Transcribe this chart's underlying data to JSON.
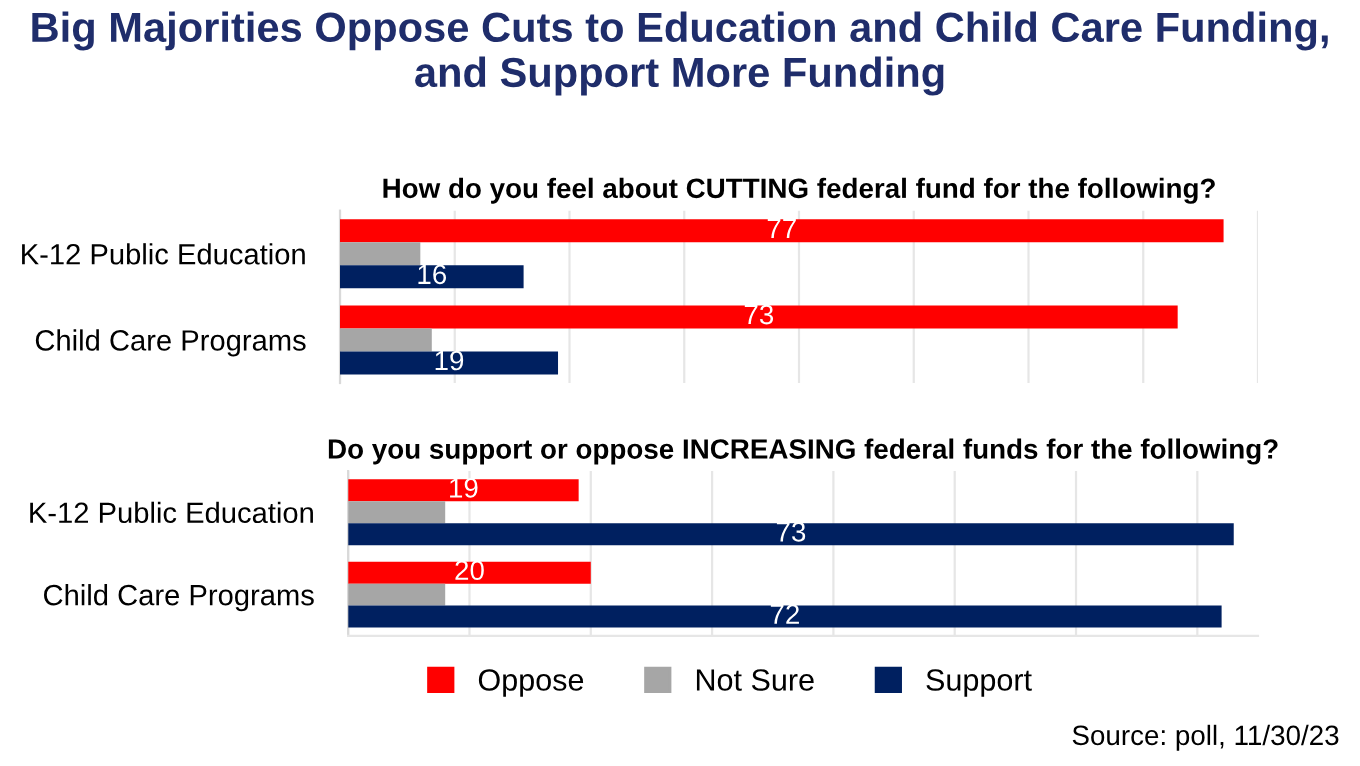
{
  "chart_data": [
    {
      "type": "bar",
      "orientation": "horizontal",
      "title": "Big Majorities Oppose Cuts to Education and Child Care Funding,\nand Support More Funding",
      "subtitle": "How do you feel about CUTTING federal fund for the following?",
      "categories": [
        "K-12 Public Education",
        "Child Care Programs"
      ],
      "series": [
        {
          "color": "#ff0000",
          "values": [
            77,
            73
          ],
          "value_labels": [
            "77",
            "73"
          ]
        },
        {
          "color": "#a6a6a6",
          "values": [
            7,
            8
          ],
          "value_labels": [
            null,
            null
          ]
        },
        {
          "color": "#002060",
          "values": [
            16,
            19
          ],
          "value_labels": [
            "16",
            "19"
          ]
        }
      ],
      "xlim": [
        0,
        80
      ],
      "xticks": [
        {
          "value": 0,
          "label": null
        },
        {
          "value": 10,
          "label": null
        },
        {
          "value": 20,
          "label": null
        },
        {
          "value": 30,
          "label": null
        },
        {
          "value": 40,
          "label": null
        },
        {
          "value": 50,
          "label": null
        },
        {
          "value": 60,
          "label": null
        },
        {
          "value": 70,
          "label": null
        },
        {
          "value": 80,
          "label": null
        }
      ],
      "grid": "x"
    },
    {
      "type": "bar",
      "orientation": "horizontal",
      "subtitle": "Do you support or oppose INCREASING federal funds for the following?",
      "categories": [
        "K-12 Public Education",
        "Child Care Programs"
      ],
      "series": [
        {
          "name": "Oppose",
          "color": "#ff0000",
          "values": [
            19,
            20
          ],
          "value_labels": [
            "19",
            "20"
          ]
        },
        {
          "name": "Not Sure",
          "color": "#a6a6a6",
          "values": [
            8,
            8
          ],
          "value_labels": [
            null,
            null
          ]
        },
        {
          "name": "Support",
          "color": "#002060",
          "values": [
            73,
            72
          ],
          "value_labels": [
            "73",
            "72"
          ]
        }
      ],
      "xlim": [
        0,
        75
      ],
      "xticks": [
        {
          "value": 0,
          "label": null
        },
        {
          "value": 10,
          "label": null
        },
        {
          "value": 20,
          "label": null
        },
        {
          "value": 30,
          "label": null
        },
        {
          "value": 40,
          "label": null
        },
        {
          "value": 50,
          "label": null
        },
        {
          "value": 60,
          "label": null
        },
        {
          "value": 70,
          "label": null
        }
      ],
      "grid": "x",
      "legend": "bottom",
      "annotations": [
        "Source: poll, 11/30/23"
      ]
    }
  ]
}
